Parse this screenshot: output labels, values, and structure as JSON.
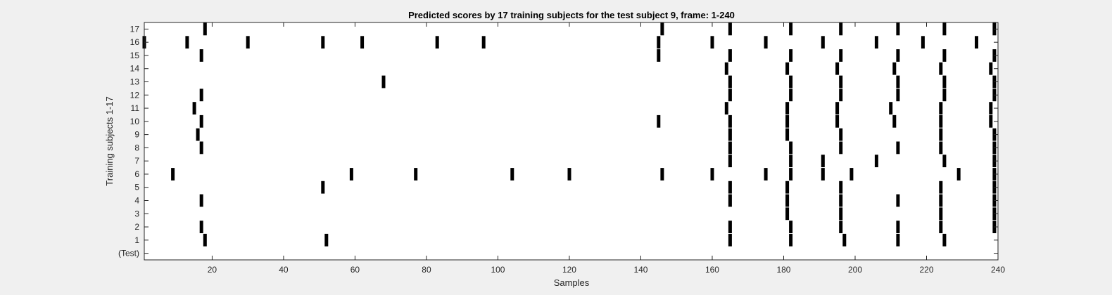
{
  "chart_data": {
    "type": "scatter",
    "marker": "vertical-bar",
    "title": "Predicted scores by 17 training subjects for the test subject 9, frame: 1-240",
    "xlabel": "Samples",
    "ylabel": "Training subjects 1-17",
    "xlim": [
      1,
      240
    ],
    "ylim": [
      -0.5,
      17.5
    ],
    "xticks": [
      20,
      40,
      60,
      80,
      100,
      120,
      140,
      160,
      180,
      200,
      220,
      240
    ],
    "yticks": [
      {
        "value": 0,
        "label": "(Test)"
      },
      {
        "value": 1,
        "label": "1"
      },
      {
        "value": 2,
        "label": "2"
      },
      {
        "value": 3,
        "label": "3"
      },
      {
        "value": 4,
        "label": "4"
      },
      {
        "value": 5,
        "label": "5"
      },
      {
        "value": 6,
        "label": "6"
      },
      {
        "value": 7,
        "label": "7"
      },
      {
        "value": 8,
        "label": "8"
      },
      {
        "value": 9,
        "label": "9"
      },
      {
        "value": 10,
        "label": "10"
      },
      {
        "value": 11,
        "label": "11"
      },
      {
        "value": 12,
        "label": "12"
      },
      {
        "value": 13,
        "label": "13"
      },
      {
        "value": 14,
        "label": "14"
      },
      {
        "value": 15,
        "label": "15"
      },
      {
        "value": 16,
        "label": "16"
      },
      {
        "value": 17,
        "label": "17"
      }
    ],
    "grid": false,
    "colors": {
      "background": "#f0f0f0",
      "axes": "#ffffff",
      "marks": "#000000",
      "text": "#262626"
    },
    "series": [
      {
        "row": 17,
        "x": [
          18,
          146,
          165,
          182,
          196,
          212,
          225,
          239
        ]
      },
      {
        "row": 16,
        "x": [
          1,
          13,
          30,
          51,
          62,
          83,
          96,
          145,
          160,
          175,
          191,
          206,
          219,
          234
        ]
      },
      {
        "row": 15,
        "x": [
          17,
          145,
          165,
          182,
          196,
          212,
          225,
          239
        ]
      },
      {
        "row": 14,
        "x": [
          164,
          181,
          195,
          211,
          224,
          238
        ]
      },
      {
        "row": 13,
        "x": [
          68,
          165,
          182,
          196,
          212,
          225,
          239
        ]
      },
      {
        "row": 12,
        "x": [
          17,
          165,
          182,
          196,
          212,
          225,
          239
        ]
      },
      {
        "row": 11,
        "x": [
          15,
          164,
          181,
          195,
          210,
          224,
          238
        ]
      },
      {
        "row": 10,
        "x": [
          17,
          145,
          165,
          181,
          195,
          211,
          224,
          238
        ]
      },
      {
        "row": 9,
        "x": [
          16,
          165,
          181,
          196,
          224,
          239
        ]
      },
      {
        "row": 8,
        "x": [
          17,
          165,
          182,
          196,
          212,
          224,
          239
        ]
      },
      {
        "row": 7,
        "x": [
          165,
          182,
          191,
          206,
          225,
          239
        ]
      },
      {
        "row": 6,
        "x": [
          9,
          59,
          77,
          104,
          120,
          146,
          160,
          175,
          182,
          191,
          199,
          229,
          239
        ]
      },
      {
        "row": 5,
        "x": [
          51,
          165,
          181,
          196,
          224,
          239
        ]
      },
      {
        "row": 4,
        "x": [
          17,
          165,
          181,
          196,
          212,
          224,
          239
        ]
      },
      {
        "row": 3,
        "x": [
          181,
          196,
          224,
          239
        ]
      },
      {
        "row": 2,
        "x": [
          17,
          165,
          182,
          196,
          212,
          224,
          239
        ]
      },
      {
        "row": 1,
        "x": [
          18,
          52,
          165,
          182,
          197,
          212,
          225
        ]
      }
    ]
  }
}
